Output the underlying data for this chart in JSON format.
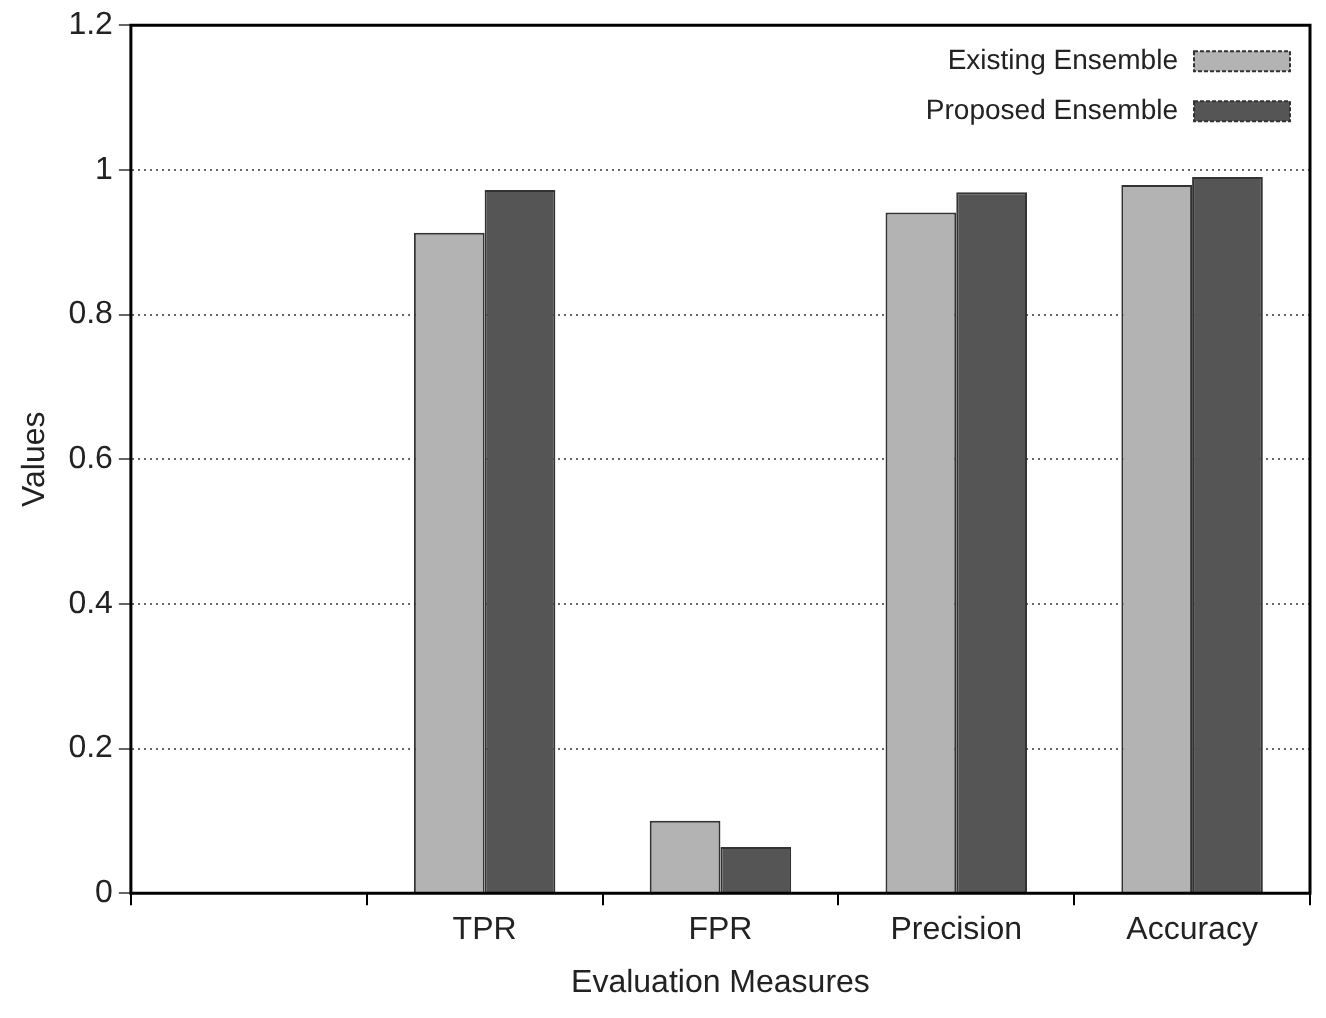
{
  "chart_data": {
    "type": "bar",
    "xlabel": "Evaluation Measures",
    "ylabel": "Values",
    "categories": [
      null,
      "TPR",
      "FPR",
      "Precision",
      "Accuracy"
    ],
    "series": [
      {
        "name": "Existing Ensemble",
        "color": "#b3b3b3",
        "values": [
          null,
          0.913,
          0.1,
          0.941,
          0.979
        ]
      },
      {
        "name": "Proposed Ensemble",
        "color": "#555555",
        "values": [
          null,
          0.972,
          0.064,
          0.969,
          0.99
        ]
      }
    ],
    "ylim": [
      0,
      1.2
    ],
    "yticks": [
      0,
      0.2,
      0.4,
      0.6,
      0.8,
      1,
      1.2
    ],
    "grid": "y",
    "legend": "top right"
  }
}
